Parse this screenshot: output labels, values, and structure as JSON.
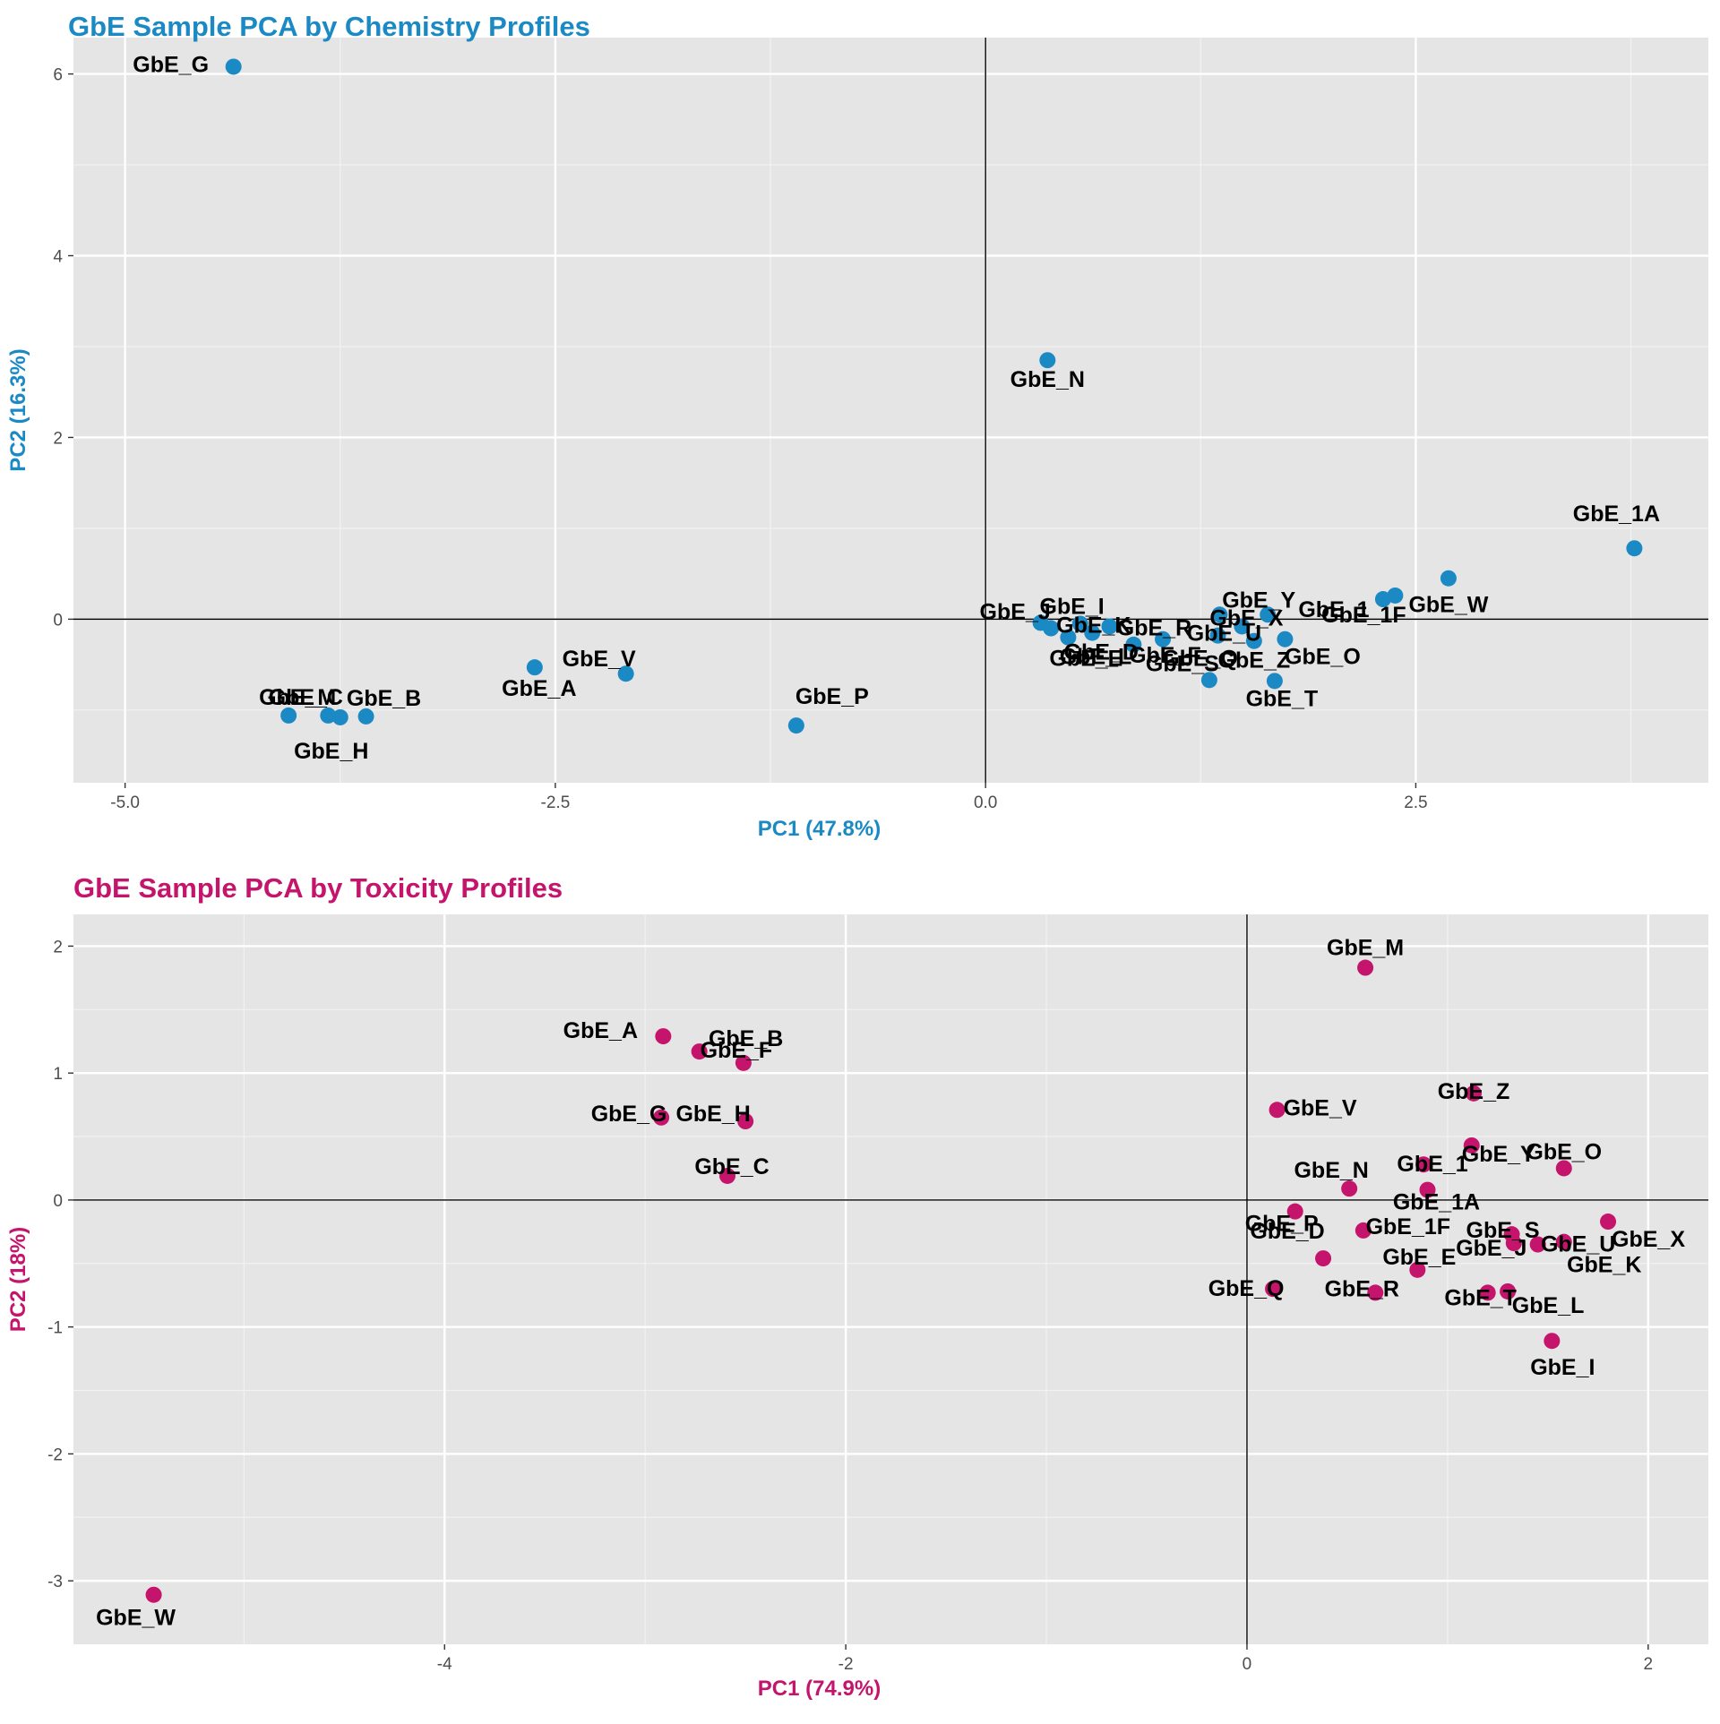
{
  "chart_data": [
    {
      "type": "scatter",
      "title": "GbE Sample PCA by Chemistry Profiles",
      "xlabel": "PC1 (47.8%)",
      "ylabel": "PC2 (16.3%)",
      "color": "#1b8ac4",
      "xlim": [
        -5.3,
        4.2
      ],
      "ylim": [
        -1.8,
        6.4
      ],
      "xticks": [
        -5.0,
        -2.5,
        0.0,
        2.5
      ],
      "xtick_labels": [
        "-5.0",
        "-2.5",
        "0.0",
        "2.5"
      ],
      "yticks": [
        0,
        2,
        4,
        6
      ],
      "ytick_labels": [
        "0",
        "2",
        "4",
        "6"
      ],
      "grid": true,
      "reference_lines": {
        "x": 0,
        "y": 0
      },
      "points": [
        {
          "label": "GbE_G",
          "x": -4.37,
          "y": 6.08
        },
        {
          "label": "GbE_N",
          "x": 0.36,
          "y": 2.85
        },
        {
          "label": "GbE_1A",
          "x": 3.77,
          "y": 0.78
        },
        {
          "label": "GbE_W",
          "x": 2.69,
          "y": 0.45
        },
        {
          "label": "GbE_1F",
          "x": 2.38,
          "y": 0.26
        },
        {
          "label": "GbE_1",
          "x": 2.31,
          "y": 0.22
        },
        {
          "label": "GbE_Y",
          "x": 1.64,
          "y": 0.05
        },
        {
          "label": "GbE_X",
          "x": 1.36,
          "y": 0.05
        },
        {
          "label": "GbE_O",
          "x": 1.74,
          "y": -0.22
        },
        {
          "label": "GbE_Z",
          "x": 1.56,
          "y": -0.24
        },
        {
          "label": "GbE_U",
          "x": 1.49,
          "y": -0.08
        },
        {
          "label": "GbE_Q",
          "x": 1.35,
          "y": -0.18
        },
        {
          "label": "GbE_L",
          "x": 1.03,
          "y": -0.22
        },
        {
          "label": "GbE_S",
          "x": 1.3,
          "y": -0.67
        },
        {
          "label": "GbE_T",
          "x": 1.68,
          "y": -0.68
        },
        {
          "label": "GbE_I",
          "x": 0.32,
          "y": -0.04
        },
        {
          "label": "GbE_J",
          "x": 0.38,
          "y": -0.1
        },
        {
          "label": "GbE_K",
          "x": 0.55,
          "y": -0.05
        },
        {
          "label": "GbE_R",
          "x": 0.72,
          "y": -0.08
        },
        {
          "label": "GbE_E",
          "x": 0.48,
          "y": -0.2
        },
        {
          "label": "GbE_D",
          "x": 0.62,
          "y": -0.15
        },
        {
          "label": "GbE_F",
          "x": 0.86,
          "y": -0.28
        },
        {
          "label": "GbE_V",
          "x": -2.09,
          "y": -0.6
        },
        {
          "label": "GbE_A",
          "x": -2.62,
          "y": -0.53
        },
        {
          "label": "GbE_P",
          "x": -1.1,
          "y": -1.17
        },
        {
          "label": "GbE_B",
          "x": -3.6,
          "y": -1.07
        },
        {
          "label": "GbE_H",
          "x": -3.75,
          "y": -1.08
        },
        {
          "label": "GbE_C",
          "x": -3.82,
          "y": -1.06
        },
        {
          "label": "GbE_M",
          "x": -4.05,
          "y": -1.06
        }
      ]
    },
    {
      "type": "scatter",
      "title": "GbE Sample PCA by Toxicity Profiles",
      "xlabel": "PC1 (74.9%)",
      "ylabel": "PC2 (18%)",
      "color": "#c4146b",
      "xlim": [
        -5.85,
        2.3
      ],
      "ylim": [
        -3.5,
        2.25
      ],
      "xticks": [
        -4,
        -2,
        0,
        2
      ],
      "xtick_labels": [
        "-4",
        "-2",
        "0",
        "2"
      ],
      "yticks": [
        -3,
        -2,
        -1,
        0,
        1,
        2
      ],
      "ytick_labels": [
        "-3",
        "-2",
        "-1",
        "0",
        "1",
        "2"
      ],
      "grid": true,
      "reference_lines": {
        "x": 0,
        "y": 0
      },
      "points": [
        {
          "label": "GbE_M",
          "x": 0.59,
          "y": 1.83
        },
        {
          "label": "GbE_A",
          "x": -2.91,
          "y": 1.29
        },
        {
          "label": "GbE_B",
          "x": -2.73,
          "y": 1.17
        },
        {
          "label": "GbE_F",
          "x": -2.51,
          "y": 1.08
        },
        {
          "label": "GbE_G",
          "x": -2.92,
          "y": 0.65
        },
        {
          "label": "GbE_H",
          "x": -2.5,
          "y": 0.62
        },
        {
          "label": "GbE_C",
          "x": -2.59,
          "y": 0.19
        },
        {
          "label": "GbE_V",
          "x": 0.15,
          "y": 0.71
        },
        {
          "label": "GbE_Z",
          "x": 1.13,
          "y": 0.84
        },
        {
          "label": "GbE_Y",
          "x": 1.12,
          "y": 0.43
        },
        {
          "label": "GbE_O",
          "x": 1.58,
          "y": 0.25
        },
        {
          "label": "GbE_1",
          "x": 0.88,
          "y": 0.28
        },
        {
          "label": "GbE_N",
          "x": 0.51,
          "y": 0.09
        },
        {
          "label": "GbE_1A",
          "x": 0.9,
          "y": 0.08
        },
        {
          "label": "GbE_P",
          "x": 0.24,
          "y": -0.09
        },
        {
          "label": "GbE_1F",
          "x": 0.58,
          "y": -0.24
        },
        {
          "label": "GbE_D",
          "x": 0.38,
          "y": -0.46
        },
        {
          "label": "GbE_E",
          "x": 0.85,
          "y": -0.55
        },
        {
          "label": "GbE_Q",
          "x": 0.13,
          "y": -0.7
        },
        {
          "label": "GbE_R",
          "x": 0.64,
          "y": -0.73
        },
        {
          "label": "GbE_S",
          "x": 1.32,
          "y": -0.27
        },
        {
          "label": "GbE_J",
          "x": 1.33,
          "y": -0.34
        },
        {
          "label": "GbE_U",
          "x": 1.45,
          "y": -0.35
        },
        {
          "label": "GbE_X",
          "x": 1.8,
          "y": -0.17
        },
        {
          "label": "GbE_K",
          "x": 1.58,
          "y": -0.33
        },
        {
          "label": "GbE_L",
          "x": 1.3,
          "y": -0.72
        },
        {
          "label": "GbE_T",
          "x": 1.2,
          "y": -0.73
        },
        {
          "label": "GbE_I",
          "x": 1.52,
          "y": -1.11
        },
        {
          "label": "GbE_W",
          "x": -5.45,
          "y": -3.11
        }
      ]
    }
  ]
}
